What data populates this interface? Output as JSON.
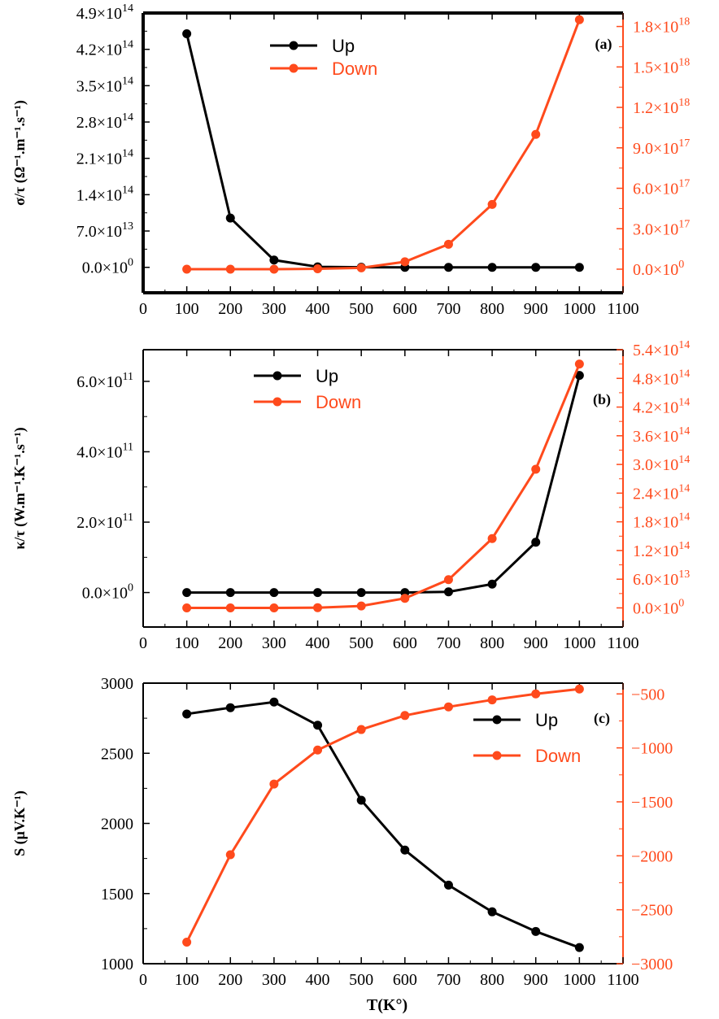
{
  "colors": {
    "up": "#000000",
    "down": "#ff4a1c",
    "axis": "#000000"
  },
  "x_axis_title": "T(K°)",
  "chart_data": [
    {
      "type": "line",
      "panel_label": "(a)",
      "ylabel": "σ/τ (Ω⁻¹.m⁻¹.s⁻¹)",
      "x": [
        100,
        200,
        300,
        400,
        500,
        600,
        700,
        800,
        900,
        1000
      ],
      "xlim": [
        0,
        1100
      ],
      "xticks": [
        0,
        100,
        200,
        300,
        400,
        500,
        600,
        700,
        800,
        900,
        1000,
        1100
      ],
      "ylim_left": [
        -49000000000000.0,
        490000000000000.0
      ],
      "yticks_left": [
        0,
        70000000000000.0,
        140000000000000.0,
        210000000000000.0,
        280000000000000.0,
        350000000000000.0,
        420000000000000.0,
        490000000000000.0
      ],
      "ytick_labels_left": [
        {
          "m": "0.0×10",
          "e": "0"
        },
        {
          "m": "7.0×10",
          "e": "13"
        },
        {
          "m": "1.4×10",
          "e": "14"
        },
        {
          "m": "2.1×10",
          "e": "14"
        },
        {
          "m": "2.8×10",
          "e": "14"
        },
        {
          "m": "3.5×10",
          "e": "14"
        },
        {
          "m": "4.2×10",
          "e": "14"
        },
        {
          "m": "4.9×10",
          "e": "14"
        }
      ],
      "ylim_right": [
        -1.75e+17,
        1.9e+18
      ],
      "yticks_right": [
        0,
        3e+17,
        6e+17,
        9e+17,
        1.2e+18,
        1.5e+18,
        1.8e+18
      ],
      "ytick_labels_right": [
        {
          "m": "0.0×10",
          "e": "0"
        },
        {
          "m": "3.0×10",
          "e": "17"
        },
        {
          "m": "6.0×10",
          "e": "17"
        },
        {
          "m": "9.0×10",
          "e": "17"
        },
        {
          "m": "1.2×10",
          "e": "18"
        },
        {
          "m": "1.5×10",
          "e": "18"
        },
        {
          "m": "1.8×10",
          "e": "18"
        }
      ],
      "series": [
        {
          "name": "Up",
          "axis": "left",
          "values": [
            450000000000000.0,
            95000000000000.0,
            14000000000000.0,
            1000000000000.0,
            200000000000.0,
            50000000000.0,
            20000000000.0,
            10000000000.0,
            5000000000.0,
            2000000000.0
          ]
        },
        {
          "name": "Down",
          "axis": "right",
          "values": [
            0,
            0,
            200000000000000.0,
            3000000000000000.0,
            1e+16,
            5.5e+16,
            1.85e+17,
            4.8e+17,
            1e+18,
            1.85e+18
          ]
        }
      ],
      "legend": [
        "Up",
        "Down"
      ],
      "legend_position": "top-center"
    },
    {
      "type": "line",
      "panel_label": "(b)",
      "ylabel": "κ/τ (W.m⁻¹.K⁻¹.s⁻¹)",
      "x": [
        100,
        200,
        300,
        400,
        500,
        600,
        700,
        800,
        900,
        1000
      ],
      "xlim": [
        0,
        1100
      ],
      "xticks": [
        0,
        100,
        200,
        300,
        400,
        500,
        600,
        700,
        800,
        900,
        1000,
        1100
      ],
      "ylim_left": [
        -98000000000.0,
        690000000000.0
      ],
      "yticks_left": [
        0,
        200000000000.0,
        400000000000.0,
        600000000000.0
      ],
      "ytick_labels_left": [
        {
          "m": "0.0×10",
          "e": "0"
        },
        {
          "m": "2.0×10",
          "e": "11"
        },
        {
          "m": "4.0×10",
          "e": "11"
        },
        {
          "m": "6.0×10",
          "e": "11"
        }
      ],
      "ylim_right": [
        -40000000000000.0,
        540000000000000.0
      ],
      "yticks_right": [
        0,
        60000000000000.0,
        120000000000000.0,
        180000000000000.0,
        240000000000000.0,
        300000000000000.0,
        360000000000000.0,
        420000000000000.0,
        480000000000000.0,
        540000000000000.0
      ],
      "ytick_labels_right": [
        {
          "m": "0.0×10",
          "e": "0"
        },
        {
          "m": "6.0×10",
          "e": "13"
        },
        {
          "m": "1.2×10",
          "e": "14"
        },
        {
          "m": "1.8×10",
          "e": "14"
        },
        {
          "m": "2.4×10",
          "e": "14"
        },
        {
          "m": "3.0×10",
          "e": "14"
        },
        {
          "m": "3.6×10",
          "e": "14"
        },
        {
          "m": "4.2×10",
          "e": "14"
        },
        {
          "m": "4.8×10",
          "e": "14"
        },
        {
          "m": "5.4×10",
          "e": "14"
        }
      ],
      "series": [
        {
          "name": "Up",
          "axis": "left",
          "values": [
            0,
            0,
            0,
            0,
            0,
            0,
            2000000000.0,
            24000000000.0,
            143000000000.0,
            617000000000.0
          ]
        },
        {
          "name": "Down",
          "axis": "right",
          "values": [
            0,
            0,
            0,
            500000000000.0,
            4000000000000.0,
            20000000000000.0,
            59000000000000.0,
            145000000000000.0,
            290000000000000.0,
            510000000000000.0
          ]
        }
      ],
      "legend": [
        "Up",
        "Down"
      ],
      "legend_position": "top-center"
    },
    {
      "type": "line",
      "panel_label": "(c)",
      "ylabel": "S (μV.K⁻¹)",
      "x": [
        100,
        200,
        300,
        400,
        500,
        600,
        700,
        800,
        900,
        1000
      ],
      "xlim": [
        0,
        1100
      ],
      "xticks": [
        0,
        100,
        200,
        300,
        400,
        500,
        600,
        700,
        800,
        900,
        1000,
        1100
      ],
      "ylim_left": [
        1000,
        3000
      ],
      "yticks_left": [
        1000,
        1500,
        2000,
        2500,
        3000
      ],
      "ylim_right": [
        -3000,
        -400
      ],
      "yticks_right": [
        -3000,
        -2500,
        -2000,
        -1500,
        -1000,
        -500
      ],
      "series": [
        {
          "name": "Up",
          "axis": "left",
          "values": [
            2780,
            2825,
            2865,
            2700,
            2165,
            1810,
            1560,
            1370,
            1230,
            1115
          ]
        },
        {
          "name": "Down",
          "axis": "right",
          "values": [
            -2800,
            -1990,
            -1335,
            -1020,
            -830,
            -700,
            -620,
            -555,
            -500,
            -455
          ]
        }
      ],
      "legend": [
        "Up",
        "Down"
      ],
      "legend_position": "top-right"
    }
  ]
}
